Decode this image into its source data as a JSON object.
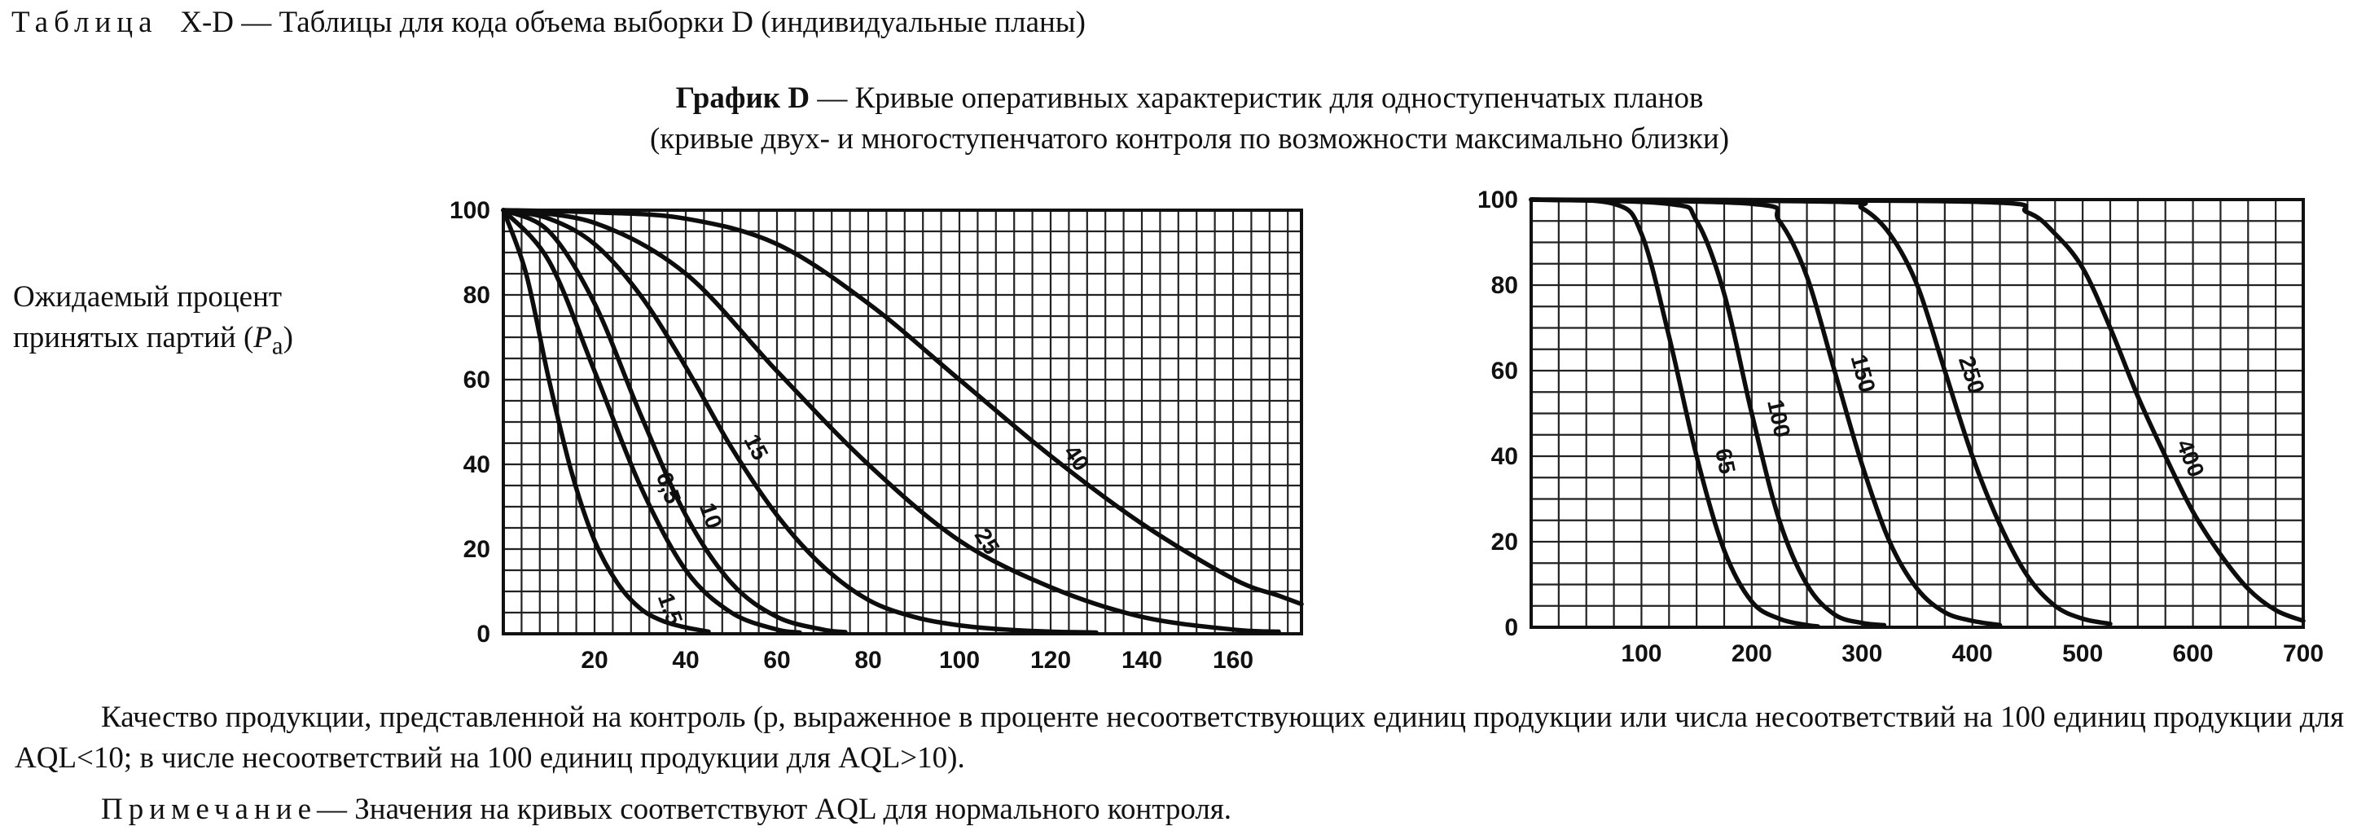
{
  "table_caption": {
    "prefix": "Таблица",
    "text": "X-D — Таблицы для кода объема выборки D (индивидуальные планы)"
  },
  "graph_title": {
    "bold": "График D",
    "line1": " — Кривые оперативных характеристик для одноступенчатых планов",
    "line2": "(кривые двух- и многоступенчатого контроля по возможности максимально близки)"
  },
  "y_description": {
    "line1": "Ожидаемый процент",
    "line2_text": "принятых партий (",
    "line2_symbol": "P",
    "line2_sub": "a",
    "line2_end": ")"
  },
  "x_description": "Качество продукции, представленной на контроль (p, выраженное в проценте несоответствующих единиц продукции или числа несоответствий на 100 единиц продукции для AQL<10; в числе несоответствий на 100 единиц продукции для AQL>10).",
  "note": {
    "prefix": "Примечание",
    "text": "— Значения на кривых соответствуют AQL для нормального контроля."
  },
  "chart_data": [
    {
      "type": "line",
      "title": "",
      "xlabel": "",
      "ylabel": "",
      "xlim": [
        0,
        175
      ],
      "ylim": [
        0,
        100
      ],
      "grid": true,
      "legend": "none",
      "x_ticks": [
        20,
        40,
        60,
        80,
        100,
        120,
        140,
        160
      ],
      "y_ticks": [
        0,
        20,
        40,
        60,
        80,
        100
      ],
      "series": [
        {
          "name": "1,5",
          "x": [
            0,
            5,
            10,
            15,
            20,
            25,
            30,
            35,
            40,
            45
          ],
          "y": [
            100,
            85,
            60,
            38,
            22,
            12,
            6,
            3,
            1.5,
            0.5
          ]
        },
        {
          "name": "6,5",
          "x": [
            0,
            10,
            20,
            30,
            40,
            50,
            60,
            65
          ],
          "y": [
            100,
            88,
            62,
            35,
            15,
            5,
            1,
            0.3
          ]
        },
        {
          "name": "10",
          "x": [
            0,
            10,
            20,
            30,
            40,
            50,
            60,
            70,
            75
          ],
          "y": [
            100,
            95,
            78,
            52,
            28,
            12,
            4,
            1,
            0.4
          ]
        },
        {
          "name": "15",
          "x": [
            0,
            10,
            20,
            30,
            40,
            50,
            60,
            70,
            80,
            90,
            100,
            110,
            120,
            130
          ],
          "y": [
            100,
            98,
            92,
            80,
            63,
            44,
            28,
            16,
            8,
            4,
            2,
            1,
            0.5,
            0.3
          ]
        },
        {
          "name": "25",
          "x": [
            0,
            20,
            40,
            60,
            80,
            100,
            120,
            140,
            160,
            170
          ],
          "y": [
            100,
            97,
            85,
            62,
            40,
            22,
            11,
            4,
            1,
            0.5
          ]
        },
        {
          "name": "40",
          "x": [
            0,
            20,
            40,
            60,
            80,
            100,
            120,
            140,
            160,
            170,
            175
          ],
          "y": [
            100,
            99.5,
            98,
            92,
            78,
            60,
            42,
            26,
            13,
            9,
            7
          ]
        }
      ]
    },
    {
      "type": "line",
      "title": "",
      "xlabel": "",
      "ylabel": "",
      "xlim": [
        0,
        700
      ],
      "ylim": [
        0,
        100
      ],
      "grid": true,
      "legend": "none",
      "x_ticks": [
        100,
        200,
        300,
        400,
        500,
        600,
        700
      ],
      "y_ticks": [
        0,
        20,
        40,
        60,
        80,
        100
      ],
      "series": [
        {
          "name": "65",
          "x": [
            0,
            75,
            100,
            125,
            150,
            175,
            200,
            225,
            250,
            260
          ],
          "y": [
            100,
            99,
            92,
            68,
            40,
            18,
            6,
            2,
            0.5,
            0.2
          ]
        },
        {
          "name": "100",
          "x": [
            0,
            125,
            150,
            175,
            200,
            225,
            250,
            275,
            300,
            320
          ],
          "y": [
            100,
            99,
            95,
            78,
            50,
            25,
            10,
            3,
            1,
            0.5
          ]
        },
        {
          "name": "150",
          "x": [
            0,
            200,
            225,
            250,
            275,
            300,
            325,
            350,
            375,
            400,
            425
          ],
          "y": [
            100,
            99,
            95,
            82,
            60,
            38,
            20,
            9,
            3.5,
            1.5,
            0.5
          ]
        },
        {
          "name": "250",
          "x": [
            0,
            275,
            300,
            325,
            350,
            375,
            400,
            425,
            450,
            475,
            500,
            525
          ],
          "y": [
            100,
            99.5,
            98,
            92,
            80,
            60,
            40,
            24,
            12,
            5,
            2,
            0.8
          ]
        },
        {
          "name": "400",
          "x": [
            0,
            400,
            450,
            475,
            500,
            525,
            550,
            575,
            600,
            625,
            650,
            675,
            700
          ],
          "y": [
            100,
            99.5,
            97,
            92,
            84,
            70,
            54,
            40,
            27,
            17,
            9,
            4,
            1.5
          ]
        }
      ]
    }
  ]
}
